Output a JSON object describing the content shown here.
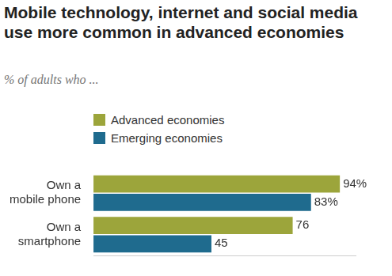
{
  "chart_data": {
    "type": "bar",
    "orientation": "horizontal",
    "title": "Mobile technology, internet and social media use more common in advanced economies",
    "subtitle": "% of adults who ...",
    "categories": [
      "Own a mobile phone",
      "Own a smartphone"
    ],
    "series": [
      {
        "name": "Advanced economies",
        "color": "#9ca53b",
        "values": [
          94,
          76
        ],
        "value_labels": [
          "94%",
          "76"
        ]
      },
      {
        "name": "Emerging economies",
        "color": "#1f6b8e",
        "values": [
          83,
          45
        ],
        "value_labels": [
          "83%",
          "45"
        ]
      }
    ],
    "xlim": [
      0,
      100
    ],
    "xticks": [],
    "grid": false,
    "legend": "top-left",
    "data_labels": true,
    "tick_labels": "y"
  }
}
